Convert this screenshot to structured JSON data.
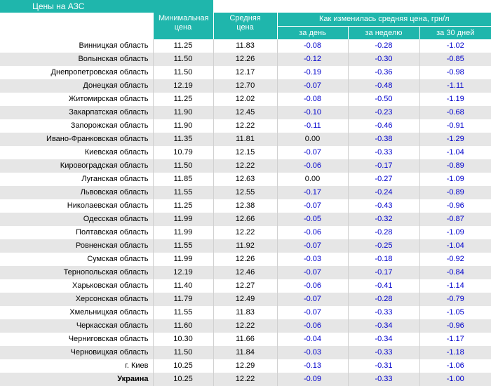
{
  "title": "Цены на АЗС",
  "headers": {
    "min_price": "Минимальная цена",
    "avg_price": "Средняя цена",
    "change_group": "Как изменилась средняя цена, грн/л",
    "per_day": "за день",
    "per_week": "за неделю",
    "per_30_days": "за 30 дней"
  },
  "rows": [
    {
      "region": "Винницкая область",
      "min": "11.25",
      "avg": "11.83",
      "day": "-0.08",
      "week": "-0.28",
      "month": "-1.02"
    },
    {
      "region": "Волынская область",
      "min": "11.50",
      "avg": "12.26",
      "day": "-0.12",
      "week": "-0.30",
      "month": "-0.85"
    },
    {
      "region": "Днепропетровская область",
      "min": "11.50",
      "avg": "12.17",
      "day": "-0.19",
      "week": "-0.36",
      "month": "-0.98"
    },
    {
      "region": "Донецкая область",
      "min": "12.19",
      "avg": "12.70",
      "day": "-0.07",
      "week": "-0.48",
      "month": "-1.11"
    },
    {
      "region": "Житомирская область",
      "min": "11.25",
      "avg": "12.02",
      "day": "-0.08",
      "week": "-0.50",
      "month": "-1.19"
    },
    {
      "region": "Закарпатская область",
      "min": "11.90",
      "avg": "12.45",
      "day": "-0.10",
      "week": "-0.23",
      "month": "-0.68"
    },
    {
      "region": "Запорожская область",
      "min": "11.90",
      "avg": "12.22",
      "day": "-0.11",
      "week": "-0.46",
      "month": "-0.91"
    },
    {
      "region": "Ивано-Франковская область",
      "min": "11.35",
      "avg": "11.81",
      "day": "0.00",
      "week": "-0.38",
      "month": "-1.29"
    },
    {
      "region": "Киевская область",
      "min": "10.79",
      "avg": "12.15",
      "day": "-0.07",
      "week": "-0.33",
      "month": "-1.04"
    },
    {
      "region": "Кировоградская область",
      "min": "11.50",
      "avg": "12.22",
      "day": "-0.06",
      "week": "-0.17",
      "month": "-0.89"
    },
    {
      "region": "Луганская область",
      "min": "11.85",
      "avg": "12.63",
      "day": "0.00",
      "week": "-0.27",
      "month": "-1.09"
    },
    {
      "region": "Львовская область",
      "min": "11.55",
      "avg": "12.55",
      "day": "-0.17",
      "week": "-0.24",
      "month": "-0.89"
    },
    {
      "region": "Николаевская область",
      "min": "11.25",
      "avg": "12.38",
      "day": "-0.07",
      "week": "-0.43",
      "month": "-0.96"
    },
    {
      "region": "Одесская область",
      "min": "11.99",
      "avg": "12.66",
      "day": "-0.05",
      "week": "-0.32",
      "month": "-0.87"
    },
    {
      "region": "Полтавская область",
      "min": "11.99",
      "avg": "12.22",
      "day": "-0.06",
      "week": "-0.28",
      "month": "-1.09"
    },
    {
      "region": "Ровненская область",
      "min": "11.55",
      "avg": "11.92",
      "day": "-0.07",
      "week": "-0.25",
      "month": "-1.04"
    },
    {
      "region": "Сумская область",
      "min": "11.99",
      "avg": "12.26",
      "day": "-0.03",
      "week": "-0.18",
      "month": "-0.92"
    },
    {
      "region": "Тернопольская область",
      "min": "12.19",
      "avg": "12.46",
      "day": "-0.07",
      "week": "-0.17",
      "month": "-0.84"
    },
    {
      "region": "Харьковская область",
      "min": "11.40",
      "avg": "12.27",
      "day": "-0.06",
      "week": "-0.41",
      "month": "-1.14"
    },
    {
      "region": "Херсонская область",
      "min": "11.79",
      "avg": "12.49",
      "day": "-0.07",
      "week": "-0.28",
      "month": "-0.79"
    },
    {
      "region": "Хмельницкая область",
      "min": "11.55",
      "avg": "11.83",
      "day": "-0.07",
      "week": "-0.33",
      "month": "-1.05"
    },
    {
      "region": "Черкасская область",
      "min": "11.60",
      "avg": "12.22",
      "day": "-0.06",
      "week": "-0.34",
      "month": "-0.96"
    },
    {
      "region": "Черниговская область",
      "min": "10.30",
      "avg": "11.66",
      "day": "-0.04",
      "week": "-0.34",
      "month": "-1.17"
    },
    {
      "region": "Черновицкая область",
      "min": "11.50",
      "avg": "11.84",
      "day": "-0.03",
      "week": "-0.33",
      "month": "-1.18"
    },
    {
      "region": "г. Киев",
      "min": "10.25",
      "avg": "12.29",
      "day": "-0.13",
      "week": "-0.31",
      "month": "-1.06"
    },
    {
      "region": "Украина",
      "min": "10.25",
      "avg": "12.22",
      "day": "-0.09",
      "week": "-0.33",
      "month": "-1.00"
    }
  ],
  "colors": {
    "header_bg": "#1fb6ac",
    "header_text": "#ffffff",
    "stripe": "#e6e6e6",
    "change_text": "#0000cc"
  }
}
